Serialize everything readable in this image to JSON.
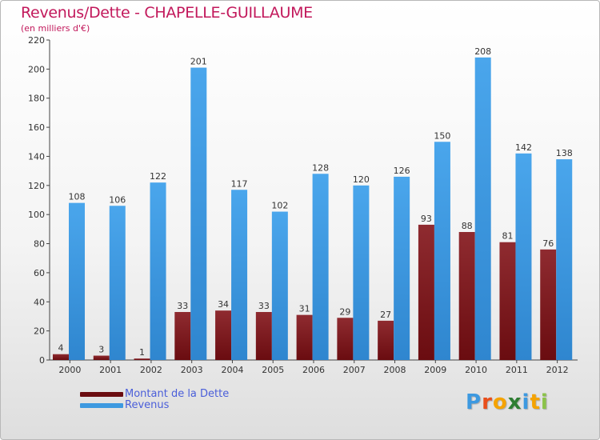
{
  "header": {
    "title": "Revenus/Dette - CHAPELLE-GUILLAUME",
    "subtitle": "(en milliers d'€)"
  },
  "colors": {
    "title": "#c2185b",
    "debt": "#7a1a1f",
    "revenue": "#3d99e0",
    "legend_text": "#4a5ed9"
  },
  "chart_data": {
    "type": "bar",
    "title": "Revenus/Dette - CHAPELLE-GUILLAUME",
    "ylabel": "(en milliers d'€)",
    "xlabel": "",
    "categories": [
      "2000",
      "2001",
      "2002",
      "2003",
      "2004",
      "2005",
      "2006",
      "2007",
      "2008",
      "2009",
      "2010",
      "2011",
      "2012"
    ],
    "series": [
      {
        "name": "Montant de la Dette",
        "color": "#7a1a1f",
        "values": [
          4,
          3,
          1,
          33,
          34,
          33,
          31,
          29,
          27,
          93,
          88,
          81,
          76
        ]
      },
      {
        "name": "Revenus",
        "color": "#3d99e0",
        "values": [
          108,
          106,
          122,
          201,
          117,
          102,
          128,
          120,
          126,
          150,
          208,
          142,
          138
        ]
      }
    ],
    "ylim": [
      0,
      220
    ],
    "yticks": [
      0,
      20,
      40,
      60,
      80,
      100,
      120,
      140,
      160,
      180,
      200,
      220
    ],
    "grid": false,
    "legend": "bottom-left"
  },
  "legend": {
    "items": [
      {
        "label": "Montant de la Dette",
        "color": "#7a1a1f"
      },
      {
        "label": "Revenus",
        "color": "#3d99e0"
      }
    ]
  },
  "logo": {
    "text": "Proxiti",
    "letters": [
      {
        "ch": "P",
        "color": "#3d99e0"
      },
      {
        "ch": "r",
        "color": "#e94e1b"
      },
      {
        "ch": "o",
        "color": "#f5a300"
      },
      {
        "ch": "x",
        "color": "#2e7d32"
      },
      {
        "ch": "i",
        "color": "#3d99e0"
      },
      {
        "ch": "t",
        "color": "#f5a300"
      },
      {
        "ch": "i",
        "color": "#8bc34a"
      }
    ]
  }
}
